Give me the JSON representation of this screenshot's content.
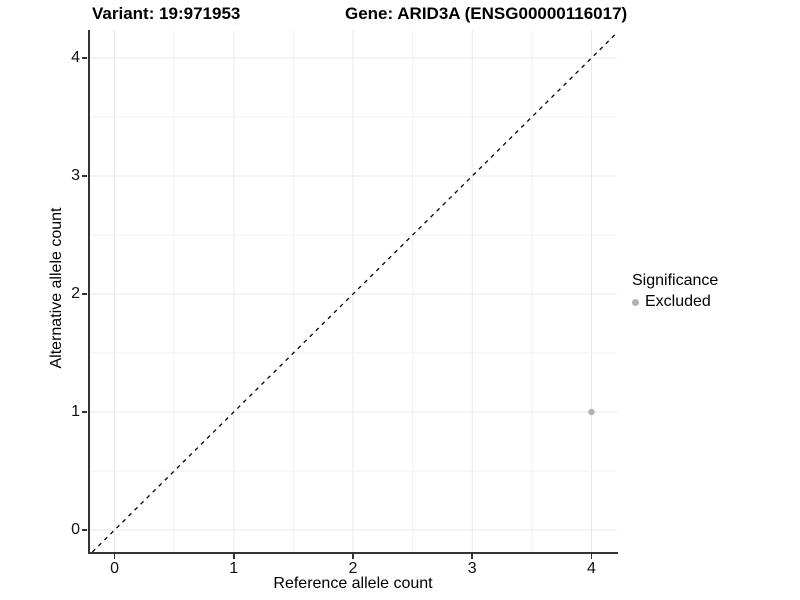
{
  "chart_data": {
    "type": "scatter",
    "title_left": "Variant: 19:971953",
    "title_right": "Gene: ARID3A (ENSG00000116017)",
    "xlabel": "Reference allele count",
    "ylabel": "Alternative allele count",
    "xlim": [
      -0.214,
      4.214
    ],
    "ylim": [
      -0.186,
      4.237
    ],
    "x_ticks": [
      0,
      1,
      2,
      3,
      4
    ],
    "y_ticks": [
      0,
      1,
      2,
      3,
      4
    ],
    "minor_grid_step": 0.5,
    "grid": true,
    "identity_line": {
      "style": "dashed",
      "slope": 1,
      "intercept": 0,
      "color": "#000000"
    },
    "series": [
      {
        "name": "Excluded",
        "color": "#b2b2b2",
        "points": [
          {
            "x": 4,
            "y": 1
          }
        ]
      }
    ],
    "legend": {
      "title": "Significance",
      "position": "right",
      "entries": [
        {
          "label": "Excluded",
          "color": "#b2b2b2",
          "marker": "dot"
        }
      ]
    }
  },
  "colors": {
    "background": "#ffffff",
    "grid_major": "#e8e8e8",
    "grid_minor": "#f1f1f1",
    "axis_line": "#333333",
    "tick_mark": "#333333",
    "tick_label": "#111111",
    "title_text": "#000000",
    "point": "#b2b2b2"
  }
}
